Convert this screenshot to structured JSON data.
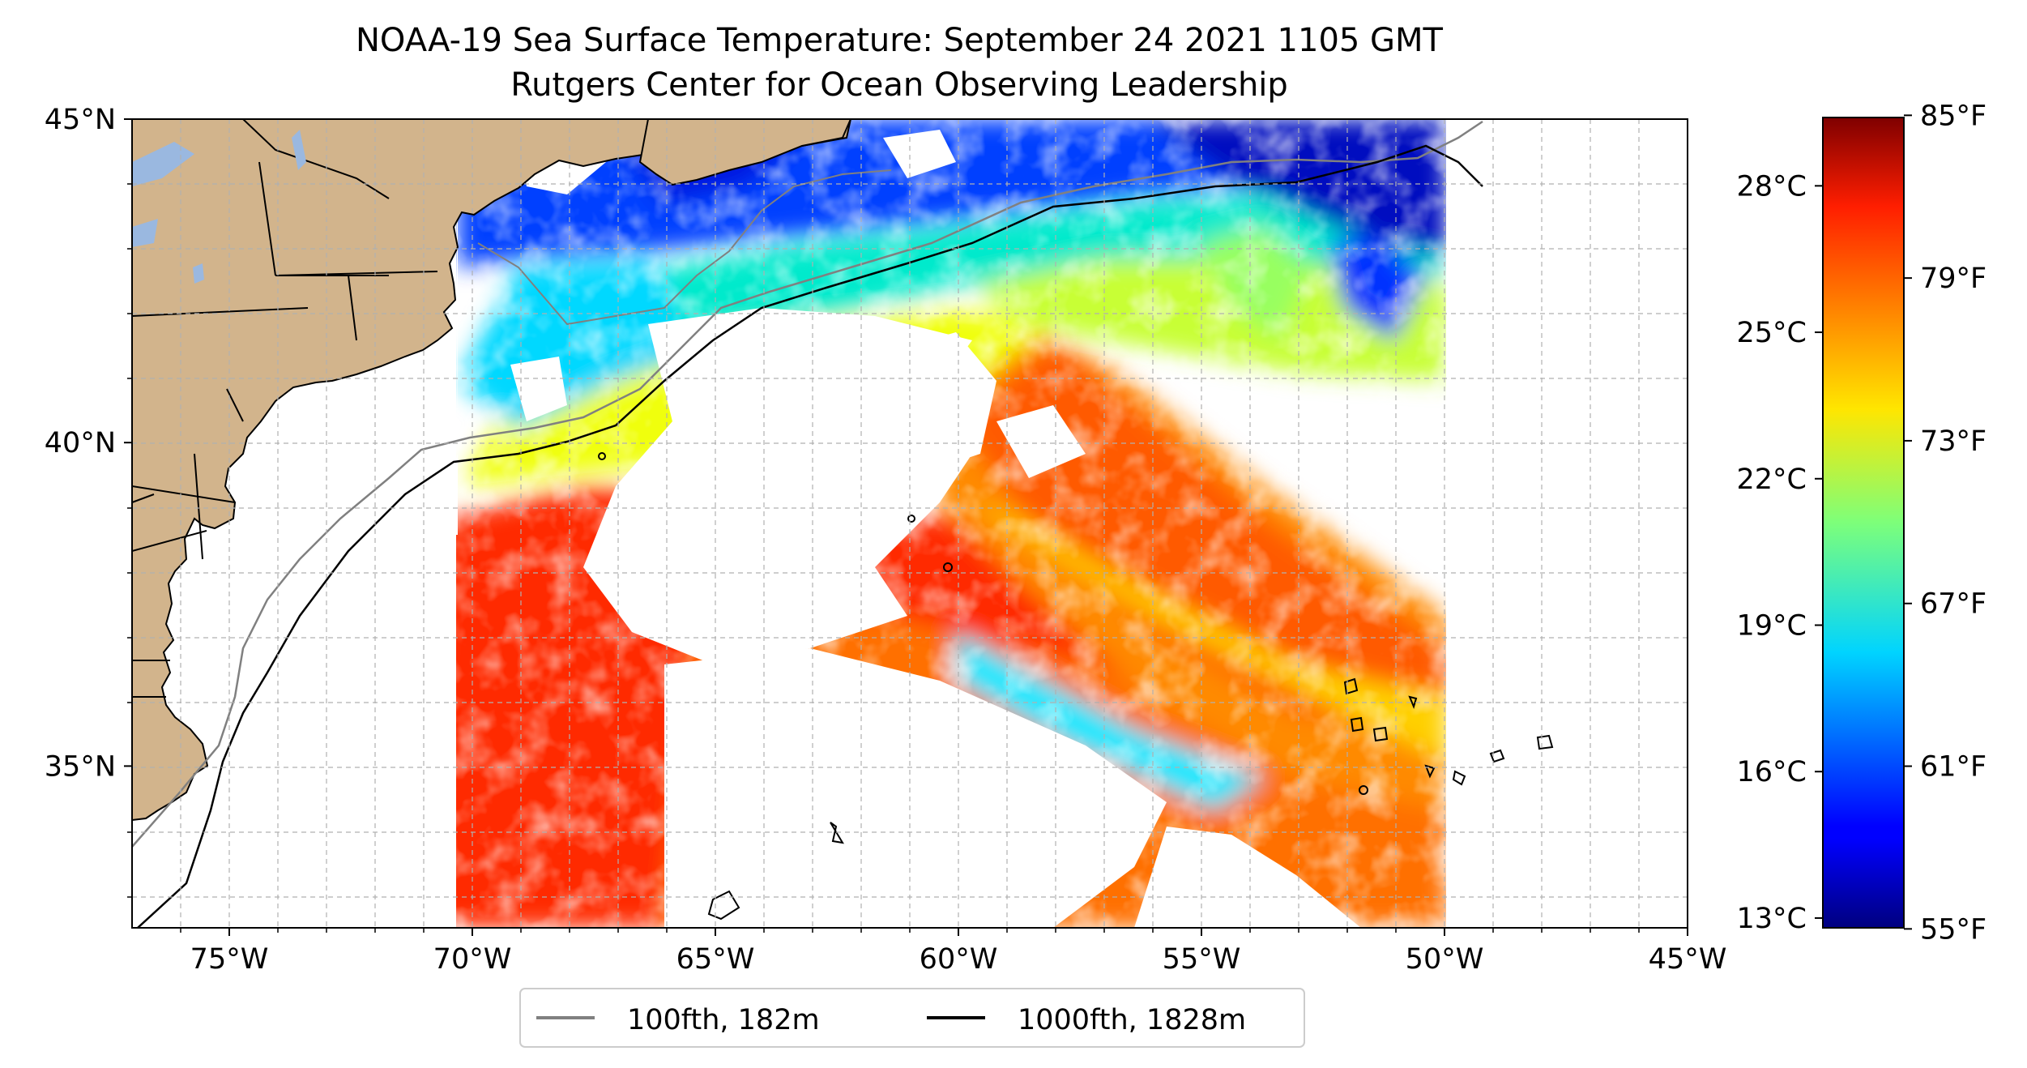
{
  "title": {
    "line1": "NOAA-19 Sea Surface Temperature: September 24 2021 1105 GMT",
    "line2": "Rutgers Center for Ocean Observing Leadership"
  },
  "map": {
    "lon_range": [
      -77,
      -45
    ],
    "lat_range": [
      32.5,
      45
    ],
    "lon_ticks": [
      {
        "lon": -75,
        "label": "75°W"
      },
      {
        "lon": -70,
        "label": "70°W"
      },
      {
        "lon": -65,
        "label": "65°W"
      },
      {
        "lon": -60,
        "label": "60°W"
      },
      {
        "lon": -55,
        "label": "55°W"
      },
      {
        "lon": -50,
        "label": "50°W"
      },
      {
        "lon": -45,
        "label": "45°W"
      }
    ],
    "lat_ticks": [
      {
        "lat": 45,
        "label": "45°N"
      },
      {
        "lat": 40,
        "label": "40°N"
      },
      {
        "lat": 35,
        "label": "35°N"
      }
    ],
    "gridlines": "dashed",
    "land_color": "#d2b48c",
    "lake_color": "#9ab8e0"
  },
  "legend": {
    "placement": "bottom-center",
    "items": [
      {
        "label": "100fth, 182m",
        "color": "#808080"
      },
      {
        "label": "1000fth, 1828m",
        "color": "#000000"
      }
    ]
  },
  "colorbar": {
    "colormap": "jet",
    "celsius_range": [
      12.8,
      29.4
    ],
    "celsius_ticks": [
      {
        "value": 13,
        "label": "13°C"
      },
      {
        "value": 16,
        "label": "16°C"
      },
      {
        "value": 19,
        "label": "19°C"
      },
      {
        "value": 22,
        "label": "22°C"
      },
      {
        "value": 25,
        "label": "25°C"
      },
      {
        "value": 28,
        "label": "28°C"
      }
    ],
    "fahrenheit_ticks": [
      {
        "value": 55,
        "label": "55°F"
      },
      {
        "value": 61,
        "label": "61°F"
      },
      {
        "value": 67,
        "label": "67°F"
      },
      {
        "value": 73,
        "label": "73°F"
      },
      {
        "value": 79,
        "label": "79°F"
      },
      {
        "value": 85,
        "label": "85°F"
      }
    ]
  }
}
